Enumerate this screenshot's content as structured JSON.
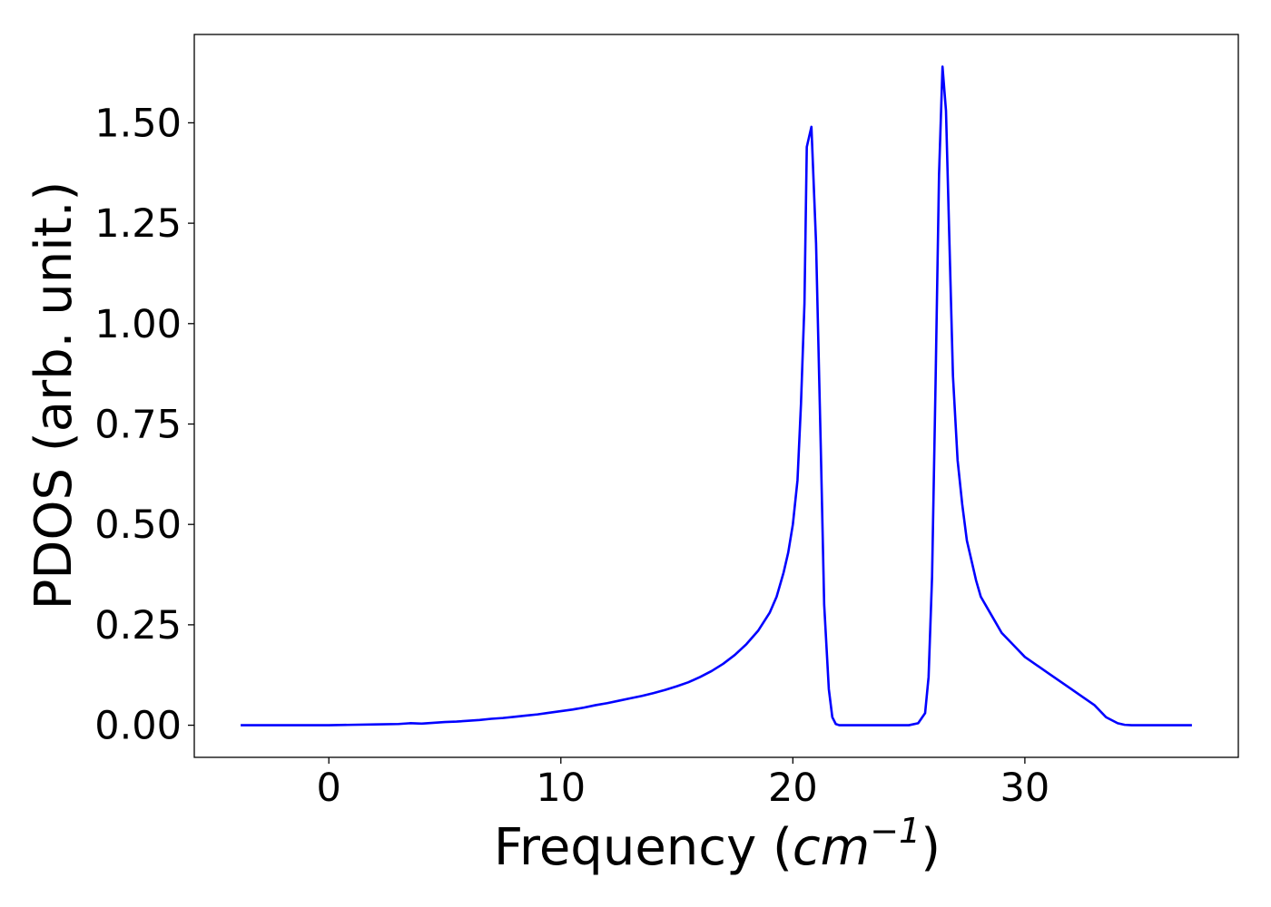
{
  "chart_data": {
    "type": "line",
    "title": "",
    "xlabel_prefix": "Frequency (",
    "xlabel_unit": "cm",
    "xlabel_exponent": "−1",
    "xlabel_suffix": ")",
    "ylabel": "PDOS (arb. unit.)",
    "xlim": [
      -5.8,
      39.2
    ],
    "ylim": [
      -0.08,
      1.72
    ],
    "x_ticks": [
      0,
      10,
      20,
      30
    ],
    "x_tick_labels": [
      "0",
      "10",
      "20",
      "30"
    ],
    "y_ticks": [
      0,
      0.25,
      0.5,
      0.75,
      1.0,
      1.25,
      1.5
    ],
    "y_tick_labels": [
      "0.00",
      "0.25",
      "0.50",
      "0.75",
      "1.00",
      "1.25",
      "1.50"
    ],
    "grid": false,
    "series": [
      {
        "color": "#0000ff",
        "x": [
          -3.8,
          0,
          1,
          2,
          3,
          3.5,
          4,
          4.5,
          5,
          5.5,
          6,
          6.5,
          7,
          7.5,
          8,
          8.5,
          9,
          9.5,
          10,
          10.5,
          11,
          11.5,
          12,
          12.5,
          13,
          13.5,
          14,
          14.5,
          15,
          15.5,
          16,
          16.5,
          17,
          17.5,
          18,
          18.5,
          19,
          19.3,
          19.6,
          19.8,
          20.0,
          20.2,
          20.35,
          20.5,
          20.6,
          20.8,
          21.0,
          21.2,
          21.35,
          21.55,
          21.7,
          21.85,
          22.0,
          22.5,
          23,
          24,
          25,
          25.4,
          25.7,
          25.85,
          26.0,
          26.15,
          26.3,
          26.45,
          26.6,
          26.75,
          26.9,
          27.1,
          27.3,
          27.5,
          27.7,
          27.9,
          28.1,
          28.4,
          28.7,
          29.0,
          29.5,
          30,
          31,
          32,
          33,
          33.5,
          34,
          34.3,
          34.6,
          35,
          36,
          37.2
        ],
        "y": [
          0,
          0,
          0.001,
          0.002,
          0.003,
          0.005,
          0.004,
          0.006,
          0.008,
          0.009,
          0.011,
          0.013,
          0.016,
          0.018,
          0.021,
          0.024,
          0.027,
          0.031,
          0.035,
          0.039,
          0.044,
          0.05,
          0.055,
          0.061,
          0.067,
          0.073,
          0.08,
          0.088,
          0.097,
          0.107,
          0.12,
          0.135,
          0.153,
          0.175,
          0.202,
          0.235,
          0.28,
          0.32,
          0.38,
          0.43,
          0.5,
          0.61,
          0.8,
          1.05,
          1.44,
          1.49,
          1.2,
          0.7,
          0.3,
          0.09,
          0.02,
          0.003,
          0,
          0,
          0,
          0,
          0,
          0.005,
          0.03,
          0.12,
          0.37,
          0.85,
          1.37,
          1.64,
          1.53,
          1.2,
          0.87,
          0.66,
          0.55,
          0.46,
          0.41,
          0.36,
          0.32,
          0.29,
          0.26,
          0.23,
          0.2,
          0.17,
          0.13,
          0.09,
          0.05,
          0.02,
          0.005,
          0.001,
          0,
          0,
          0,
          0
        ]
      }
    ]
  }
}
